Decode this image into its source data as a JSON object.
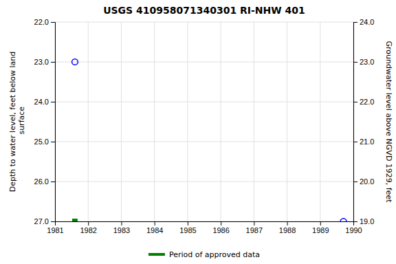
{
  "chart_data": {
    "type": "scatter",
    "title": "USGS 410958071340301 RI-NHW  401",
    "y_label": "Depth to water level, feet below land\n surface",
    "y2_label": "Groundwater level above NGVD 1929, feet",
    "xlim": [
      1981,
      1990
    ],
    "xticks": [
      1981,
      1982,
      1983,
      1984,
      1985,
      1986,
      1987,
      1988,
      1989,
      1990
    ],
    "ylim": [
      27.0,
      22.0
    ],
    "yticks": [
      {
        "value": 22.0,
        "label": "22.0"
      },
      {
        "value": 23.0,
        "label": "23.0"
      },
      {
        "value": 24.0,
        "label": "24.0"
      },
      {
        "value": 25.0,
        "label": "25.0"
      },
      {
        "value": 26.0,
        "label": "26.0"
      },
      {
        "value": 27.0,
        "label": "27.0"
      }
    ],
    "y2lim": [
      19.0,
      24.0
    ],
    "y2ticks": [
      {
        "value": 24.0,
        "label": "24.0"
      },
      {
        "value": 23.0,
        "label": "23.0"
      },
      {
        "value": 22.0,
        "label": "22.0"
      },
      {
        "value": 21.0,
        "label": "21.0"
      },
      {
        "value": 20.0,
        "label": "20.0"
      },
      {
        "value": 19.0,
        "label": "19.0"
      }
    ],
    "grid": true,
    "legend": "bottom",
    "series": [
      {
        "color": "blue",
        "marker": "circle",
        "x": [
          1981.6,
          1989.7
        ],
        "values": [
          23.0,
          27.0
        ]
      },
      {
        "name": "Period of approved data",
        "color": "#008000",
        "marker": "square",
        "x": [
          1981.6
        ],
        "values": [
          27.0
        ]
      }
    ]
  }
}
